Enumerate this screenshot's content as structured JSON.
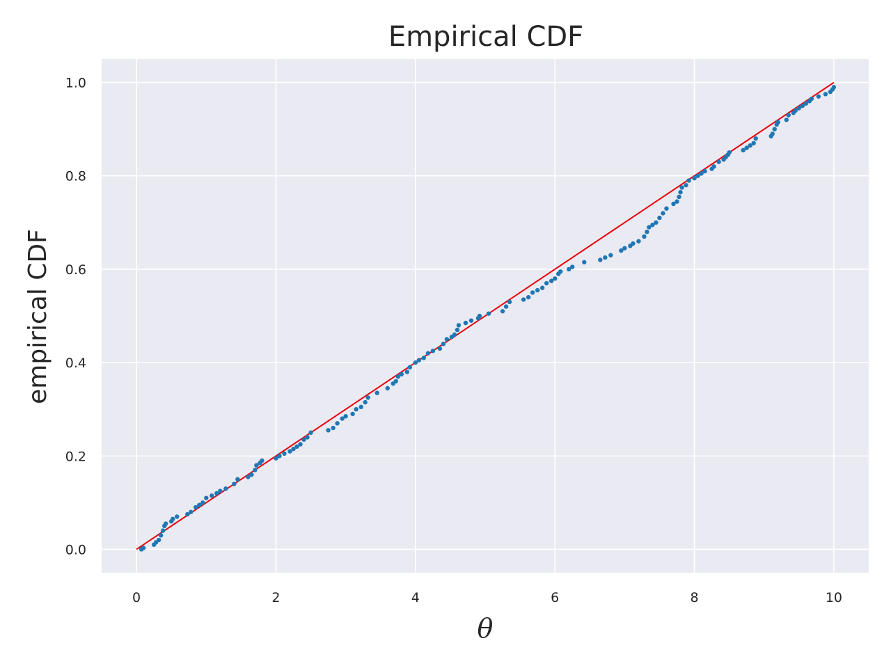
{
  "chart_data": {
    "type": "scatter",
    "title": "Empirical CDF",
    "xlabel": "θ",
    "ylabel": "empirical CDF",
    "xlim": [
      -0.5,
      10.5
    ],
    "ylim": [
      -0.05,
      1.05
    ],
    "xticks": [
      0,
      2,
      4,
      6,
      8,
      10
    ],
    "xtick_labels": [
      "0",
      "2",
      "4",
      "6",
      "8",
      "10"
    ],
    "yticks": [
      0.0,
      0.2,
      0.4,
      0.6,
      0.8,
      1.0
    ],
    "ytick_labels": [
      "0.0",
      "0.2",
      "0.4",
      "0.6",
      "0.8",
      "1.0"
    ],
    "grid": true,
    "background_color": "#eaeaf2",
    "grid_color": "#ffffff",
    "series": [
      {
        "kind": "scatter",
        "color": "#1f77b4",
        "points": [
          [
            0.07,
            0.0
          ],
          [
            0.1,
            0.003
          ],
          [
            0.25,
            0.01
          ],
          [
            0.28,
            0.015
          ],
          [
            0.32,
            0.02
          ],
          [
            0.35,
            0.03
          ],
          [
            0.38,
            0.04
          ],
          [
            0.4,
            0.05
          ],
          [
            0.42,
            0.055
          ],
          [
            0.5,
            0.06
          ],
          [
            0.52,
            0.065
          ],
          [
            0.58,
            0.07
          ],
          [
            0.73,
            0.075
          ],
          [
            0.78,
            0.08
          ],
          [
            0.85,
            0.09
          ],
          [
            0.9,
            0.095
          ],
          [
            0.95,
            0.1
          ],
          [
            1.0,
            0.11
          ],
          [
            1.08,
            0.115
          ],
          [
            1.15,
            0.12
          ],
          [
            1.2,
            0.125
          ],
          [
            1.28,
            0.13
          ],
          [
            1.4,
            0.14
          ],
          [
            1.45,
            0.15
          ],
          [
            1.6,
            0.155
          ],
          [
            1.65,
            0.16
          ],
          [
            1.7,
            0.17
          ],
          [
            1.72,
            0.18
          ],
          [
            1.77,
            0.185
          ],
          [
            1.8,
            0.19
          ],
          [
            2.0,
            0.195
          ],
          [
            2.05,
            0.2
          ],
          [
            2.12,
            0.205
          ],
          [
            2.2,
            0.21
          ],
          [
            2.25,
            0.215
          ],
          [
            2.3,
            0.22
          ],
          [
            2.35,
            0.225
          ],
          [
            2.4,
            0.235
          ],
          [
            2.45,
            0.24
          ],
          [
            2.5,
            0.25
          ],
          [
            2.75,
            0.255
          ],
          [
            2.82,
            0.26
          ],
          [
            2.88,
            0.27
          ],
          [
            2.95,
            0.28
          ],
          [
            3.0,
            0.285
          ],
          [
            3.1,
            0.29
          ],
          [
            3.15,
            0.3
          ],
          [
            3.22,
            0.305
          ],
          [
            3.28,
            0.315
          ],
          [
            3.32,
            0.325
          ],
          [
            3.45,
            0.335
          ],
          [
            3.6,
            0.345
          ],
          [
            3.68,
            0.355
          ],
          [
            3.72,
            0.36
          ],
          [
            3.75,
            0.37
          ],
          [
            3.8,
            0.375
          ],
          [
            3.88,
            0.38
          ],
          [
            3.92,
            0.39
          ],
          [
            4.0,
            0.4
          ],
          [
            4.05,
            0.405
          ],
          [
            4.12,
            0.41
          ],
          [
            4.18,
            0.42
          ],
          [
            4.25,
            0.425
          ],
          [
            4.35,
            0.43
          ],
          [
            4.4,
            0.44
          ],
          [
            4.45,
            0.45
          ],
          [
            4.52,
            0.455
          ],
          [
            4.56,
            0.46
          ],
          [
            4.6,
            0.47
          ],
          [
            4.62,
            0.48
          ],
          [
            4.72,
            0.485
          ],
          [
            4.8,
            0.49
          ],
          [
            4.9,
            0.495
          ],
          [
            4.92,
            0.5
          ],
          [
            5.05,
            0.505
          ],
          [
            5.25,
            0.51
          ],
          [
            5.3,
            0.52
          ],
          [
            5.35,
            0.53
          ],
          [
            5.55,
            0.535
          ],
          [
            5.62,
            0.54
          ],
          [
            5.68,
            0.55
          ],
          [
            5.75,
            0.555
          ],
          [
            5.82,
            0.56
          ],
          [
            5.88,
            0.57
          ],
          [
            5.95,
            0.575
          ],
          [
            6.0,
            0.58
          ],
          [
            6.05,
            0.59
          ],
          [
            6.08,
            0.595
          ],
          [
            6.2,
            0.6
          ],
          [
            6.25,
            0.605
          ],
          [
            6.42,
            0.615
          ],
          [
            6.65,
            0.62
          ],
          [
            6.72,
            0.625
          ],
          [
            6.8,
            0.63
          ],
          [
            6.95,
            0.64
          ],
          [
            7.0,
            0.645
          ],
          [
            7.08,
            0.65
          ],
          [
            7.12,
            0.655
          ],
          [
            7.2,
            0.66
          ],
          [
            7.28,
            0.67
          ],
          [
            7.32,
            0.68
          ],
          [
            7.35,
            0.69
          ],
          [
            7.4,
            0.695
          ],
          [
            7.45,
            0.7
          ],
          [
            7.5,
            0.71
          ],
          [
            7.55,
            0.72
          ],
          [
            7.6,
            0.73
          ],
          [
            7.7,
            0.74
          ],
          [
            7.75,
            0.745
          ],
          [
            7.78,
            0.755
          ],
          [
            7.8,
            0.765
          ],
          [
            7.82,
            0.775
          ],
          [
            7.88,
            0.78
          ],
          [
            7.92,
            0.79
          ],
          [
            8.0,
            0.795
          ],
          [
            8.05,
            0.8
          ],
          [
            8.1,
            0.805
          ],
          [
            8.15,
            0.81
          ],
          [
            8.25,
            0.815
          ],
          [
            8.28,
            0.82
          ],
          [
            8.35,
            0.83
          ],
          [
            8.42,
            0.835
          ],
          [
            8.45,
            0.84
          ],
          [
            8.48,
            0.845
          ],
          [
            8.5,
            0.85
          ],
          [
            8.7,
            0.855
          ],
          [
            8.75,
            0.86
          ],
          [
            8.8,
            0.865
          ],
          [
            8.85,
            0.87
          ],
          [
            8.88,
            0.88
          ],
          [
            9.1,
            0.885
          ],
          [
            9.12,
            0.89
          ],
          [
            9.15,
            0.9
          ],
          [
            9.18,
            0.91
          ],
          [
            9.2,
            0.915
          ],
          [
            9.32,
            0.92
          ],
          [
            9.35,
            0.93
          ],
          [
            9.42,
            0.935
          ],
          [
            9.45,
            0.94
          ],
          [
            9.5,
            0.945
          ],
          [
            9.55,
            0.95
          ],
          [
            9.6,
            0.955
          ],
          [
            9.65,
            0.96
          ],
          [
            9.68,
            0.965
          ],
          [
            9.78,
            0.97
          ],
          [
            9.88,
            0.975
          ],
          [
            9.95,
            0.98
          ],
          [
            9.98,
            0.985
          ],
          [
            10.0,
            0.99
          ]
        ]
      },
      {
        "kind": "line",
        "color": "#e8000b",
        "points": [
          [
            0,
            0
          ],
          [
            10,
            1
          ]
        ]
      }
    ]
  }
}
